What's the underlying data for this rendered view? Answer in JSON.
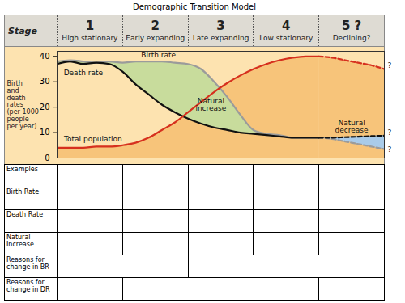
{
  "title": "Demographic Transition Model",
  "stage_header": "Stage",
  "stages": [
    {
      "number": "1",
      "name": "High stationary"
    },
    {
      "number": "2",
      "name": "Early expanding"
    },
    {
      "number": "3",
      "name": "Late expanding"
    },
    {
      "number": "4",
      "name": "Low stationary"
    },
    {
      "number": "5 ?",
      "name": "Declining?"
    }
  ],
  "chart_data": {
    "type": "line",
    "y_label": "Birth\nand\ndeath\nrates\n(per 1000\npeople\nper year)",
    "xlim": [
      0,
      5
    ],
    "ylim": [
      0,
      42
    ],
    "yticks": [
      0,
      10,
      20,
      30,
      40
    ],
    "tick_labels": "y",
    "series": [
      {
        "name": "Birth rate",
        "color": "#9b9b9b",
        "line_style": "solid",
        "x": [
          0,
          0.2,
          0.4,
          0.6,
          0.8,
          1,
          1.2,
          1.4,
          1.6,
          1.8,
          2,
          2.2,
          2.4,
          2.6,
          2.8,
          3,
          3.2,
          3.4,
          3.6,
          3.8,
          4
        ],
        "values": [
          38,
          38.5,
          38,
          37.5,
          38,
          37.5,
          38,
          38,
          38,
          37.5,
          37,
          35,
          30,
          24,
          17,
          11,
          9.5,
          9,
          8,
          8,
          8
        ]
      },
      {
        "name": "Birth rate",
        "color": "#9b9b9b",
        "line_style": "dashed",
        "x": [
          4,
          4.2,
          4.4,
          4.6,
          4.8,
          5
        ],
        "values": [
          8,
          7.5,
          6.5,
          5.5,
          4.5,
          3.5
        ]
      },
      {
        "name": "Death rate",
        "color": "#111111",
        "line_style": "solid",
        "x": [
          0,
          0.2,
          0.4,
          0.6,
          0.8,
          1,
          1.2,
          1.4,
          1.6,
          1.8,
          2,
          2.2,
          2.4,
          2.6,
          2.8,
          3,
          3.2,
          3.4,
          3.6,
          3.8,
          4
        ],
        "values": [
          37,
          38,
          37,
          37.5,
          37,
          34,
          29,
          25,
          21,
          18,
          15.5,
          13.5,
          12,
          11,
          10,
          9.5,
          9,
          8.5,
          8,
          8,
          8
        ]
      },
      {
        "name": "Death rate",
        "color": "#111111",
        "line_style": "dashed",
        "x": [
          4,
          4.2,
          4.4,
          4.6,
          4.8,
          5
        ],
        "values": [
          8,
          8,
          8.2,
          8.4,
          8.6,
          8.8
        ]
      },
      {
        "name": "Total population",
        "color": "#d6301e",
        "line_style": "solid",
        "x": [
          0,
          0.2,
          0.4,
          0.6,
          0.8,
          1,
          1.2,
          1.4,
          1.6,
          1.8,
          2,
          2.2,
          2.4,
          2.6,
          2.8,
          3,
          3.2,
          3.4,
          3.6,
          3.8,
          4
        ],
        "values": [
          4,
          4,
          4,
          4.5,
          4.5,
          5,
          6,
          8,
          11,
          14,
          18,
          22,
          26,
          29.5,
          32.5,
          35,
          37,
          38.5,
          39.5,
          40,
          40
        ]
      },
      {
        "name": "Total population",
        "color": "#d6301e",
        "line_style": "dashed",
        "x": [
          4,
          4.2,
          4.4,
          4.6,
          4.8,
          5
        ],
        "values": [
          40,
          39.5,
          38.5,
          37.5,
          36.5,
          35
        ]
      }
    ],
    "areas": [
      {
        "under": "Total population",
        "color": "#f7c47a"
      },
      {
        "between": [
          "Death rate",
          "Birth rate"
        ],
        "line_style": "solid",
        "color": "#c8dc9c"
      },
      {
        "between": [
          "Death rate",
          "Birth rate"
        ],
        "line_style": "dashed",
        "color": "#a9cbe9"
      }
    ],
    "annotations": [
      {
        "text": "Birth rate",
        "x": 1.55,
        "y": 40.5
      },
      {
        "text": "Death rate",
        "x": 0.4,
        "y": 33.5
      },
      {
        "text": "Natural\nincrease",
        "x": 2.35,
        "y": 21
      },
      {
        "text": "Total population",
        "x": 0.55,
        "y": 7.5
      },
      {
        "text": "Natural\ndecrease",
        "x": 4.5,
        "y": 12.5
      },
      {
        "text": "?",
        "x": 5.08,
        "y": 36.5
      },
      {
        "text": "?",
        "x": 5.08,
        "y": 10
      },
      {
        "text": "?",
        "x": 5.08,
        "y": 3.5
      }
    ]
  },
  "table": {
    "rows": [
      {
        "label": "Examples"
      },
      {
        "label": "Birth Rate"
      },
      {
        "label": "Death Rate"
      },
      {
        "label": "Natural Increase"
      },
      {
        "label": "Reasons for change in BR"
      },
      {
        "label": "Reasons for change in DR"
      }
    ]
  }
}
